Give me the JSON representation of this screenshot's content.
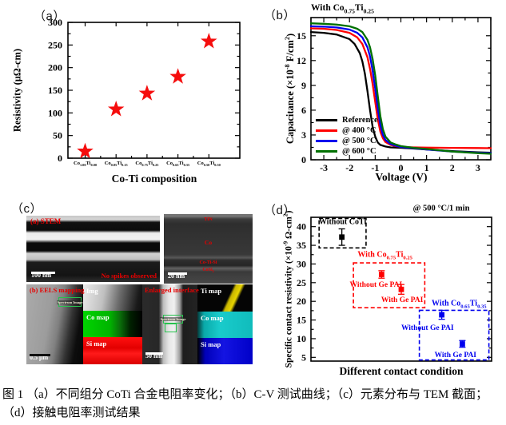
{
  "figure": {
    "caption": "图 1 （a）不同组分 CoTi 合金电阻率变化；（b）C-V 测试曲线；（c）元素分布与 TEM 截面；（d）接触电阻率测试结果"
  },
  "chart_data": [
    {
      "id": "a",
      "panel_label": "（a）",
      "type": "scatter",
      "marker": "star",
      "marker_color": "#f50d0d",
      "categories": [
        "Co_{1.00}Ti_{0.00}",
        "Co_{0.85}Ti_{0.15}",
        "Co_{0.75}Ti_{0.25}",
        "Co_{0.65}Ti_{0.35}",
        "Co_{0.50}Ti_{0.50}"
      ],
      "values": [
        15,
        108,
        143,
        180,
        258
      ],
      "xlabel": "Co-Ti composition",
      "ylabel": "Resistivity (μΩ-cm)",
      "ylim": [
        0,
        300
      ],
      "yticks": [
        0,
        50,
        100,
        150,
        200,
        250,
        300
      ],
      "grid": false
    },
    {
      "id": "b",
      "panel_label": "（b）",
      "type": "line",
      "title": "With Co_{0.75}Ti_{0.25}",
      "xlabel": "Voltage (V)",
      "ylabel": "Capacitance (×10^{-8} F/cm^{2})",
      "xlim": [
        -3.5,
        3.5
      ],
      "ylim": [
        0,
        17.2
      ],
      "xticks": [
        -3,
        -2,
        -1,
        0,
        1,
        2,
        3
      ],
      "yticks": [
        0,
        3,
        6,
        9,
        12,
        15
      ],
      "legend_position": "lower-left",
      "grid": false,
      "series": [
        {
          "name": "Reference",
          "color": "#000000",
          "x": [
            -3.5,
            -3,
            -2.5,
            -2,
            -1.8,
            -1.6,
            -1.5,
            -1.4,
            -1.3,
            -1.2,
            -1.1,
            -1.0,
            -0.9,
            -0.8,
            -0.6,
            -0.4,
            0,
            0.5,
            1,
            2,
            3,
            3.5
          ],
          "y": [
            15.45,
            15.35,
            15.15,
            14.6,
            14.0,
            12.9,
            11.9,
            10.4,
            8.3,
            6.0,
            4.0,
            2.8,
            2.1,
            1.8,
            1.6,
            1.5,
            1.45,
            1.35,
            1.25,
            1.05,
            0.9,
            0.85
          ]
        },
        {
          "name": "@ 400 °C",
          "color": "#ff0000",
          "x": [
            -3.5,
            -3,
            -2.5,
            -2,
            -1.7,
            -1.5,
            -1.3,
            -1.2,
            -1.1,
            -1.0,
            -0.9,
            -0.8,
            -0.7,
            -0.6,
            -0.4,
            -0.2,
            0,
            0.5,
            1,
            2,
            3,
            3.5
          ],
          "y": [
            15.9,
            15.85,
            15.7,
            15.35,
            14.8,
            14.0,
            12.4,
            11.0,
            9.2,
            7.0,
            4.9,
            3.4,
            2.6,
            2.15,
            1.8,
            1.65,
            1.55,
            1.5,
            1.47,
            1.44,
            1.42,
            1.4
          ]
        },
        {
          "name": "@ 500 °C",
          "color": "#0000ee",
          "x": [
            -3.5,
            -3,
            -2.5,
            -2,
            -1.7,
            -1.5,
            -1.3,
            -1.2,
            -1.1,
            -1.0,
            -0.9,
            -0.8,
            -0.7,
            -0.6,
            -0.4,
            -0.2,
            0,
            0.5,
            1,
            2,
            3,
            3.5
          ],
          "y": [
            16.15,
            16.1,
            16.0,
            15.75,
            15.35,
            14.8,
            13.6,
            12.5,
            10.8,
            8.6,
            6.2,
            4.2,
            3.0,
            2.4,
            1.9,
            1.7,
            1.55,
            1.4,
            1.25,
            1.0,
            0.85,
            0.8
          ]
        },
        {
          "name": "@ 600 °C",
          "color": "#007000",
          "x": [
            -3.5,
            -3,
            -2.5,
            -2,
            -1.7,
            -1.5,
            -1.3,
            -1.2,
            -1.1,
            -1.0,
            -0.9,
            -0.8,
            -0.7,
            -0.6,
            -0.4,
            -0.2,
            0,
            0.5,
            1,
            2,
            3,
            3.5
          ],
          "y": [
            16.5,
            16.45,
            16.35,
            16.15,
            15.85,
            15.45,
            14.5,
            13.6,
            12.2,
            10.2,
            7.7,
            5.3,
            3.7,
            2.8,
            2.1,
            1.85,
            1.65,
            1.45,
            1.3,
            1.0,
            0.8,
            0.72
          ]
        }
      ]
    },
    {
      "id": "d",
      "panel_label": "（d）",
      "type": "scatter",
      "marker": "square",
      "annotation": "@ 500 °C/1 min",
      "xlabel": "Different contact condition",
      "ylabel": "Specific contact resistivity (×10^{-9} Ω-cm^{2})",
      "ylim": [
        4,
        42.5
      ],
      "yticks": [
        5,
        10,
        15,
        20,
        25,
        30,
        35,
        40
      ],
      "grid": false,
      "points": [
        {
          "x": 0.171,
          "y": 37.2,
          "err": 2.2,
          "color": "#000000"
        },
        {
          "x": 0.391,
          "y": 27.2,
          "err": 1.0,
          "color": "#ff0000"
        },
        {
          "x": 0.5,
          "y": 23.2,
          "err": 1.3,
          "color": "#ff0000"
        },
        {
          "x": 0.724,
          "y": 16.4,
          "err": 1.2,
          "color": "#0000ee"
        },
        {
          "x": 0.838,
          "y": 8.6,
          "err": 0.9,
          "color": "#0000ee"
        }
      ],
      "groups": [
        {
          "label": "Without CoTi",
          "color": "#000000",
          "x0": 0.045,
          "x1": 0.305,
          "y0": 34.3,
          "y1": 42.2,
          "label_x": 0.175,
          "label_y": 41.2
        },
        {
          "label": "With Co_{0.75}Ti_{0.25}",
          "color": "#ff0000",
          "x0": 0.235,
          "x1": 0.63,
          "y0": 18.3,
          "y1": 30.3,
          "label_x": 0.41,
          "label_y": 32.3
        },
        {
          "label": "With Co_{0.65}Ti_{0.35}",
          "color": "#0000ee",
          "x0": 0.6,
          "x1": 0.985,
          "y0": 4.3,
          "y1": 17.6,
          "label_x": 0.82,
          "label_y": 19.2
        }
      ],
      "point_labels": [
        {
          "text": "Without Ge PAI",
          "color": "#ff0000",
          "x": 0.36,
          "y": 24.4
        },
        {
          "text": "With Ge PAI",
          "color": "#ff0000",
          "x": 0.505,
          "y": 20.3
        },
        {
          "text": "Without Ge PAI",
          "color": "#0000ee",
          "x": 0.645,
          "y": 12.8
        },
        {
          "text": "With Ge PAI",
          "color": "#0000ee",
          "x": 0.8,
          "y": 5.5
        }
      ]
    }
  ],
  "panel_c": {
    "panel_label": "（c）",
    "stem": {
      "tag": "(a) STEM",
      "scale": "100 nm",
      "note": "No spikes observed"
    },
    "tem": {
      "layer_top": "TiN",
      "layer_mid": "Co",
      "layer_int1": "Co-Ti-Si",
      "layer_int2": "CoSi_{2}",
      "scale": "20 nm"
    },
    "eels": {
      "tag": "(b) EELS mapping",
      "scale": "0.5 μm",
      "roi": "Spectrum Image",
      "maps": [
        "Img",
        "Co map",
        "Si map"
      ]
    },
    "enlarged": {
      "tag": "Enlarged interface",
      "scale": "50 nm",
      "roi": "Spectrum Image",
      "maps": [
        "Ti map",
        "Co map",
        "Si map"
      ]
    }
  }
}
